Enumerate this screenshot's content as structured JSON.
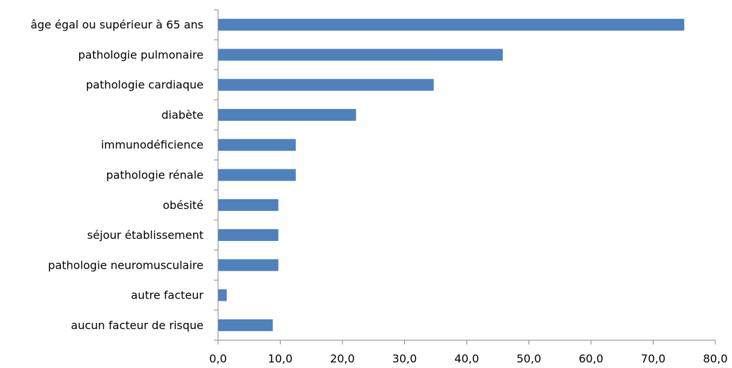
{
  "chart_data": {
    "type": "bar",
    "orientation": "horizontal",
    "categories": [
      "âge égal ou supérieur à 65 ans",
      "pathologie pulmonaire",
      "pathologie cardiaque",
      "diabète",
      "immunodéficience",
      "pathologie rénale",
      "obésité",
      "séjour établissement",
      "pathologie neuromusculaire",
      "autre facteur",
      "aucun facteur de risque"
    ],
    "values": [
      75.0,
      45.8,
      34.7,
      22.2,
      12.5,
      12.5,
      9.7,
      9.7,
      9.7,
      1.4,
      8.8
    ],
    "xlim": [
      0,
      80
    ],
    "xticks": [
      0,
      10,
      20,
      30,
      40,
      50,
      60,
      70,
      80
    ],
    "xtick_labels": [
      "0,0",
      "10,0",
      "20,0",
      "30,0",
      "40,0",
      "50,0",
      "60,0",
      "70,0",
      "80,0"
    ],
    "title": "",
    "xlabel": "",
    "ylabel": "",
    "grid": false,
    "legend": "none",
    "bar_color": "#4f81bd",
    "axis_color": "#868686"
  }
}
